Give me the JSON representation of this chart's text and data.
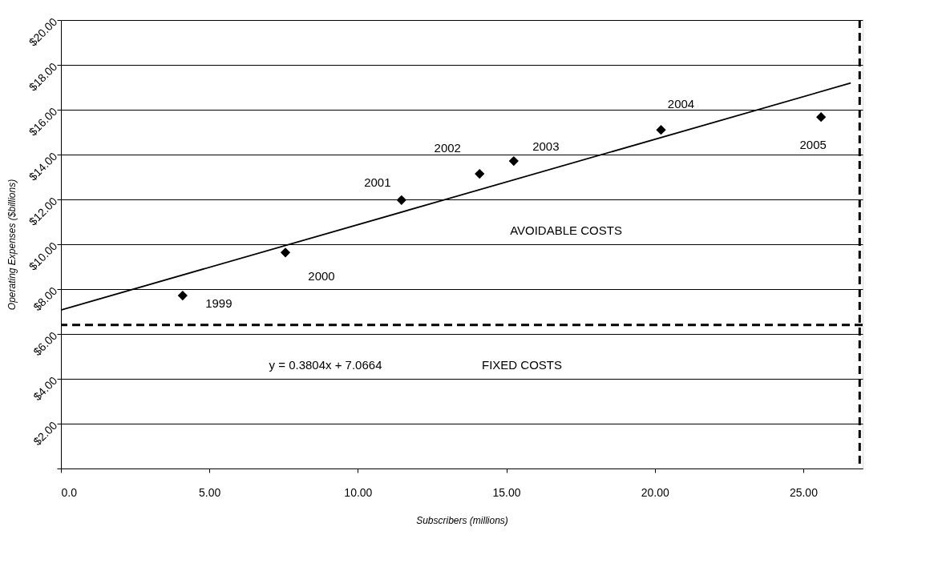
{
  "chart_data": {
    "type": "scatter",
    "xlabel": "Subscribers (millions)",
    "ylabel": "Operating Expenses ($billions)",
    "xlim": [
      0,
      27
    ],
    "ylim": [
      0,
      20
    ],
    "xticks": [
      {
        "value": 0,
        "label": "0.0"
      },
      {
        "value": 5,
        "label": "5.00"
      },
      {
        "value": 10,
        "label": "10.00"
      },
      {
        "value": 15,
        "label": "15.00"
      },
      {
        "value": 20,
        "label": "20.00"
      },
      {
        "value": 25,
        "label": "25.00"
      }
    ],
    "yticks": [
      {
        "value": 0,
        "label": null
      },
      {
        "value": 2,
        "label": "$2.00"
      },
      {
        "value": 4,
        "label": "$4.00"
      },
      {
        "value": 6,
        "label": "$6.00"
      },
      {
        "value": 8,
        "label": "$8.00"
      },
      {
        "value": 10,
        "label": "$10.00"
      },
      {
        "value": 12,
        "label": "$12.00"
      },
      {
        "value": 14,
        "label": "$14.00"
      },
      {
        "value": 16,
        "label": "$16.00"
      },
      {
        "value": 18,
        "label": "$18.00"
      },
      {
        "value": 20,
        "label": "$20.00"
      }
    ],
    "grid": "y",
    "marker": "diamond",
    "series": [
      {
        "color": "#000000",
        "x": [
          4.1,
          7.56,
          11.47,
          14.1,
          15.25,
          20.21,
          25.6
        ],
        "values": [
          7.71,
          9.63,
          11.97,
          13.14,
          13.71,
          15.1,
          15.67
        ]
      },
      {
        "type": "line",
        "color": "#000000",
        "line_style": "solid",
        "marker": "none",
        "x": [
          0,
          26.6
        ],
        "values": [
          7.07,
          17.19
        ]
      }
    ],
    "ref_lines": [
      {
        "axis": "y",
        "value": 6.4,
        "label": null,
        "color": "#000000",
        "line_style": "dashed"
      },
      {
        "axis": "x",
        "value": 26.9,
        "label": null,
        "color": "#000000",
        "line_style": "dashed"
      }
    ],
    "annotations": [
      {
        "text": "1999",
        "x": 4.1,
        "y": 7.71
      },
      {
        "text": "2000",
        "x": 7.56,
        "y": 9.63
      },
      {
        "text": "2001",
        "x": 11.47,
        "y": 11.97
      },
      {
        "text": "2002",
        "x": 14.1,
        "y": 13.14
      },
      {
        "text": "2003",
        "x": 15.25,
        "y": 13.71
      },
      {
        "text": "2004",
        "x": 20.21,
        "y": 15.1
      },
      {
        "text": "2005",
        "x": 25.6,
        "y": 15.67
      },
      "AVOIDABLE COSTS",
      "y = 0.3804x + 7.0664",
      "FIXED COSTS"
    ]
  }
}
